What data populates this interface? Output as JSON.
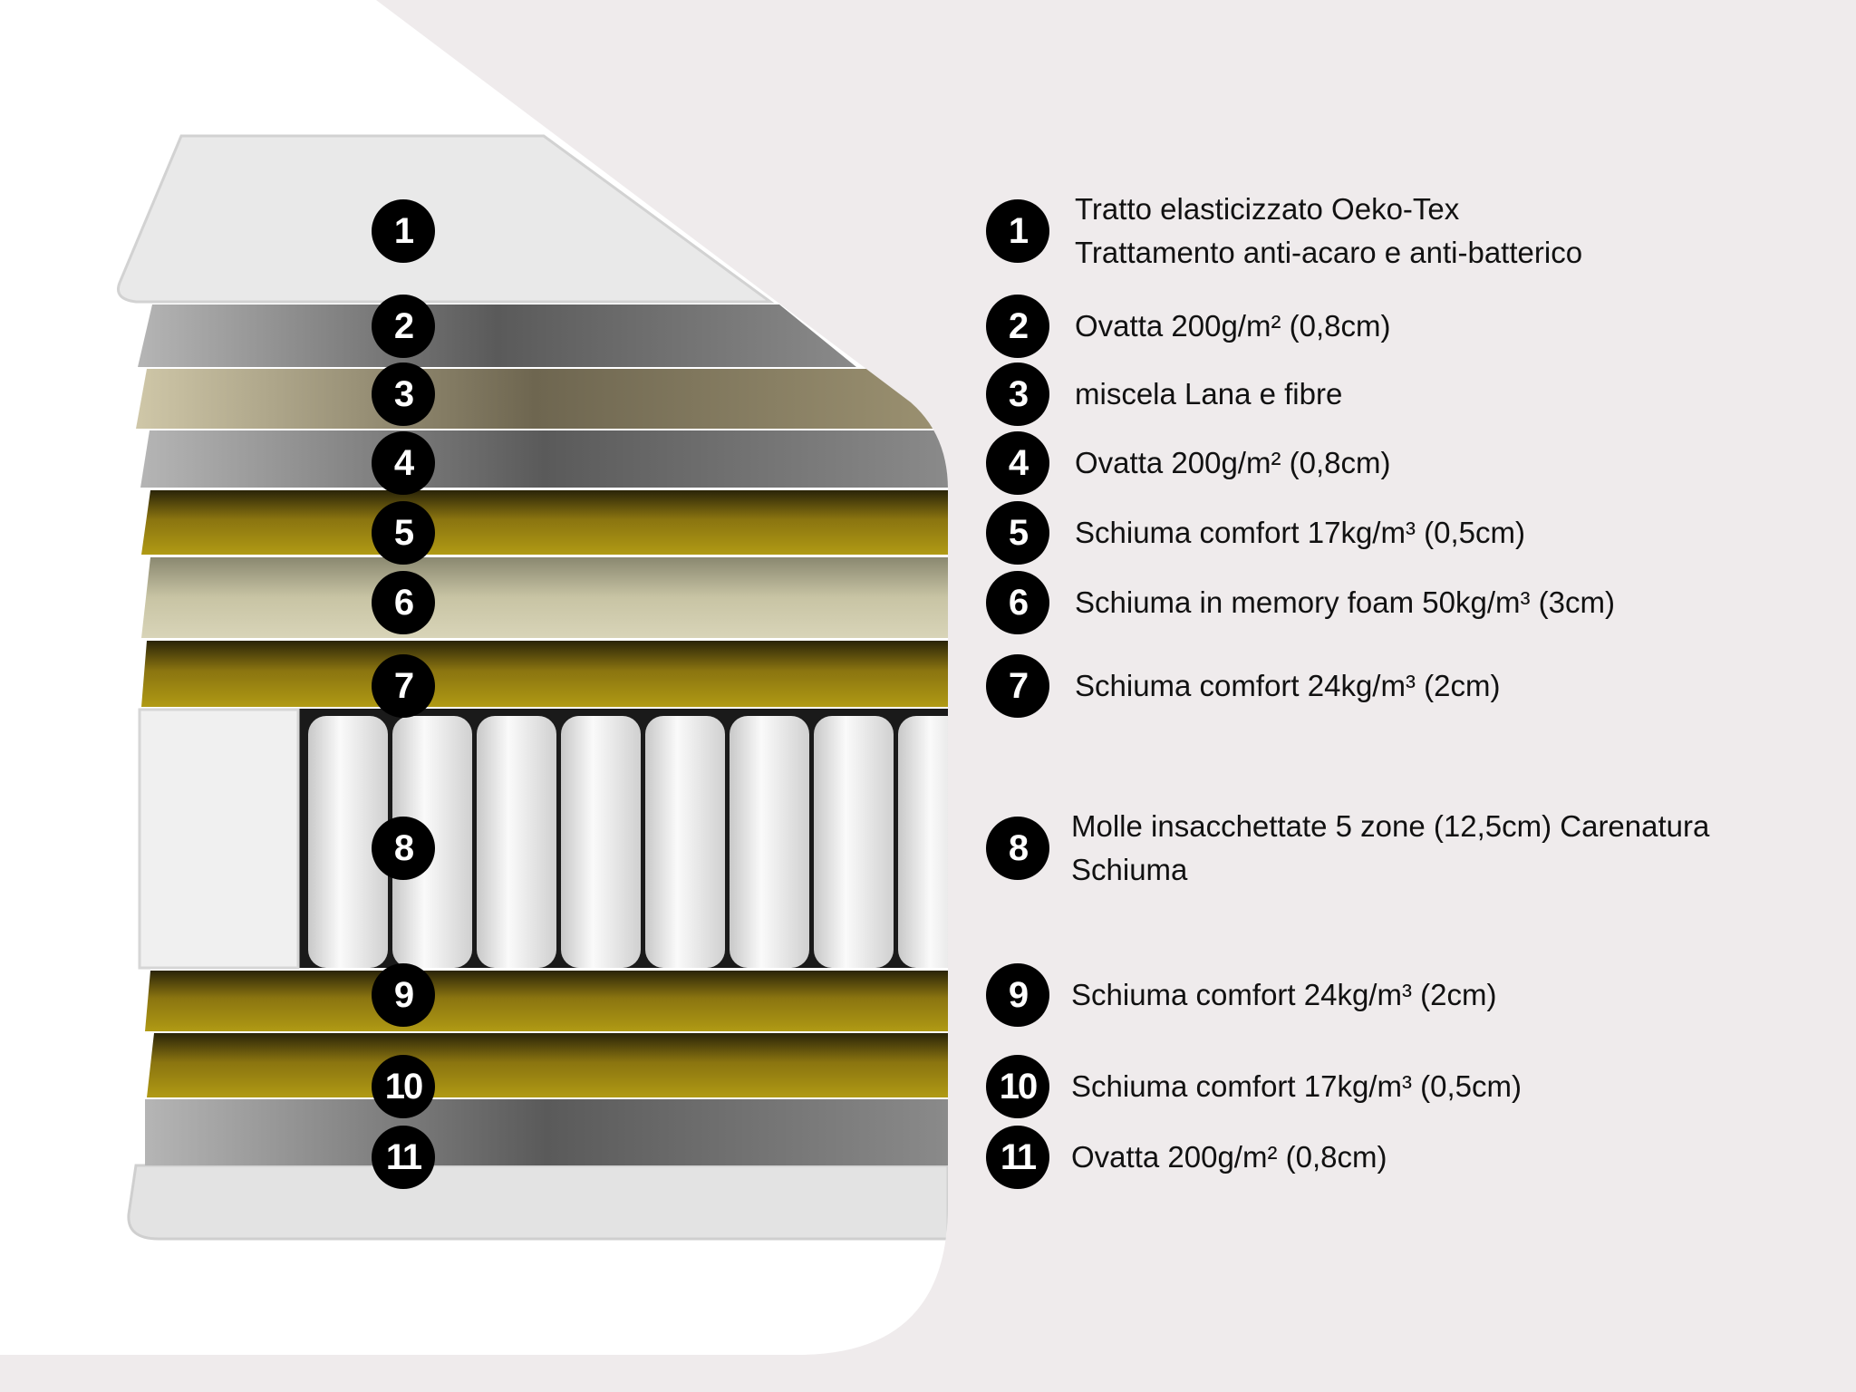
{
  "colors": {
    "background": "#efebec",
    "panel": "#ffffff",
    "badge": "#000000",
    "comfort_foam": "#a08a12",
    "memory_foam": "#cfcbaa",
    "wadding": "#9a9a9a",
    "wool_blend": "#b8ae8c",
    "cover": "#e6e6e6"
  },
  "layers": [
    {
      "number": "1",
      "lines": [
        "Tratto elasticizzato Oeko-Tex",
        "Trattamento anti-acaro e anti-batterico"
      ]
    },
    {
      "number": "2",
      "lines": [
        "Ovatta 200g/m² (0,8cm)"
      ]
    },
    {
      "number": "3",
      "lines": [
        "miscela Lana e fibre"
      ]
    },
    {
      "number": "4",
      "lines": [
        "Ovatta 200g/m² (0,8cm)"
      ]
    },
    {
      "number": "5",
      "lines": [
        "Schiuma comfort 17kg/m³ (0,5cm)"
      ]
    },
    {
      "number": "6",
      "lines": [
        "Schiuma in memory foam 50kg/m³ (3cm)"
      ]
    },
    {
      "number": "7",
      "lines": [
        "Schiuma comfort 24kg/m³ (2cm)"
      ]
    },
    {
      "number": "8",
      "lines": [
        "Molle insacchettate 5 zone (12,5cm) Carenatura",
        "Schiuma"
      ]
    },
    {
      "number": "9",
      "lines": [
        "Schiuma comfort 24kg/m³ (2cm)"
      ]
    },
    {
      "number": "10",
      "lines": [
        "Schiuma comfort 17kg/m³ (0,5cm)"
      ]
    },
    {
      "number": "11",
      "lines": [
        "Ovatta 200g/m² (0,8cm)"
      ]
    }
  ]
}
